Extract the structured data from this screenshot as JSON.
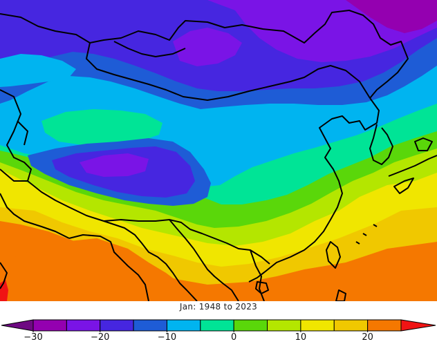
{
  "caption": "Jan: 1948 to 2023",
  "colorbar": {
    "min": -35,
    "max": 30,
    "step": 5,
    "colors": [
      "#6e0a82",
      "#9400b0",
      "#7a14e6",
      "#4626e0",
      "#1e5cd6",
      "#00b4f0",
      "#00e496",
      "#5ad70a",
      "#b4e600",
      "#f0e600",
      "#f0c800",
      "#f57800",
      "#f01414"
    ],
    "ticks": [
      {
        "value": -30,
        "label": "−30"
      },
      {
        "value": -20,
        "label": "−20"
      },
      {
        "value": -10,
        "label": "−10"
      },
      {
        "value": 0,
        "label": "0"
      },
      {
        "value": 10,
        "label": "10"
      },
      {
        "value": 20,
        "label": "20"
      }
    ]
  }
}
